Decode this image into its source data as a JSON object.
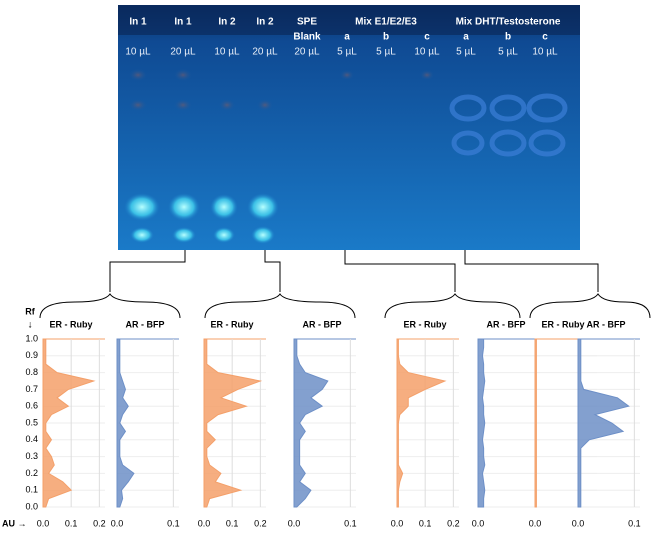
{
  "plate": {
    "lanes": [
      {
        "label": "In 1",
        "volume": "10 µL"
      },
      {
        "label": "In 1",
        "volume": "20 µL"
      },
      {
        "label": "In 2",
        "volume": "10 µL"
      },
      {
        "label": "In 2",
        "volume": "20 µL"
      },
      {
        "label": "SPE",
        "sublabel": "Blank",
        "volume": "20 µL"
      },
      {
        "label": "a",
        "volume": "5 µL"
      },
      {
        "label": "b",
        "volume": "5 µL"
      },
      {
        "label": "c",
        "volume": "10 µL"
      },
      {
        "label": "a",
        "volume": "5 µL"
      },
      {
        "label": "b",
        "volume": "5 µL"
      },
      {
        "label": "c",
        "volume": "10 µL"
      }
    ],
    "groups": [
      {
        "label": "Mix E1/E2/E3"
      },
      {
        "label": "Mix DHT/Testosterone"
      }
    ]
  },
  "rf_axis": {
    "label": "Rf",
    "arrow": "↓",
    "ylim": [
      0,
      1
    ],
    "yticks": [
      {
        "value": 1,
        "label": "1.0"
      },
      0.9,
      0.8,
      0.7,
      0.6,
      0.5,
      0.4,
      0.3,
      0.2,
      0.1,
      {
        "value": 0,
        "label": "0.0"
      }
    ]
  },
  "au_label": "AU →",
  "rf": [
    0,
    0.05,
    0.1,
    0.15,
    0.2,
    0.25,
    0.3,
    0.35,
    0.4,
    0.45,
    0.5,
    0.55,
    0.6,
    0.65,
    0.7,
    0.75,
    0.8,
    0.85,
    0.9,
    0.95,
    1
  ],
  "chart_data": [
    {
      "type": "area",
      "series": [
        {
          "name": "ER - Ruby",
          "color": "#f4a06a",
          "xlim": [
            0,
            0.22
          ],
          "xticks": [
            {
              "value": 0,
              "label": "0.0"
            },
            0.1,
            0.2
          ],
          "values": [
            0.01,
            0.02,
            0.1,
            0.07,
            0.02,
            0.04,
            0.03,
            0.01,
            0.03,
            0.01,
            0.01,
            0.03,
            0.09,
            0.05,
            0.09,
            0.18,
            0.05,
            0.01,
            0.01,
            0.01,
            0.01
          ]
        },
        {
          "name": "AR - BFP",
          "color": "#6d8fc7",
          "xlim": [
            0,
            0.11
          ],
          "xticks": [
            {
              "value": 0,
              "label": "0.0"
            },
            0.1
          ],
          "values": [
            0.005,
            0.01,
            0.008,
            0.02,
            0.03,
            0.01,
            0.005,
            0.005,
            0.005,
            0.015,
            0.005,
            0.01,
            0.02,
            0.01,
            0.015,
            0.01,
            0.005,
            0.005,
            0.005,
            0.005,
            0.005
          ]
        }
      ]
    },
    {
      "type": "area",
      "series": [
        {
          "name": "ER - Ruby",
          "color": "#f4a06a",
          "xlim": [
            0,
            0.22
          ],
          "xticks": [
            {
              "value": 0,
              "label": "0.0"
            },
            0.1,
            0.2
          ],
          "values": [
            0.01,
            0.02,
            0.13,
            0.04,
            0.06,
            0.02,
            0.01,
            0.01,
            0.04,
            0.01,
            0.01,
            0.05,
            0.15,
            0.06,
            0.12,
            0.2,
            0.05,
            0.01,
            0.01,
            0.01,
            0.01
          ]
        },
        {
          "name": "AR - BFP",
          "color": "#6d8fc7",
          "xlim": [
            0,
            0.11
          ],
          "xticks": [
            {
              "value": 0,
              "label": "0.0"
            },
            0.1
          ],
          "values": [
            0.005,
            0.02,
            0.03,
            0.01,
            0.02,
            0.01,
            0.01,
            0.01,
            0.01,
            0.02,
            0.01,
            0.02,
            0.05,
            0.03,
            0.05,
            0.06,
            0.02,
            0.01,
            0.005,
            0.005,
            0.005
          ]
        }
      ]
    },
    {
      "type": "area",
      "series": [
        {
          "name": "ER - Ruby",
          "color": "#f4a06a",
          "xlim": [
            0,
            0.22
          ],
          "xticks": [
            {
              "value": 0,
              "label": "0.0"
            },
            0.1,
            0.2
          ],
          "values": [
            0.005,
            0.005,
            0.005,
            0.01,
            0.02,
            0.005,
            0.005,
            0.005,
            0.005,
            0.005,
            0.005,
            0.01,
            0.04,
            0.04,
            0.1,
            0.17,
            0.04,
            0.01,
            0.005,
            0.005,
            0.005
          ]
        },
        {
          "name": "AR - BFP",
          "color": "#6d8fc7",
          "xlim": [
            0,
            0.11
          ],
          "xticks": [
            {
              "value": 0,
              "label": "0.0"
            }
          ],
          "values": [
            0.01,
            0.01,
            0.012,
            0.01,
            0.008,
            0.012,
            0.01,
            0.01,
            0.008,
            0.01,
            0.012,
            0.01,
            0.01,
            0.008,
            0.01,
            0.012,
            0.01,
            0.01,
            0.008,
            0.01,
            0.01
          ]
        }
      ]
    },
    {
      "type": "area",
      "series": [
        {
          "name": "ER - Ruby",
          "color": "#f4a06a",
          "xlim": [
            0,
            0.22
          ],
          "xticks": [
            {
              "value": 0,
              "label": "0.0"
            }
          ],
          "values": [
            0.005,
            0.005,
            0.005,
            0.005,
            0.005,
            0.005,
            0.005,
            0.005,
            0.005,
            0.005,
            0.005,
            0.005,
            0.005,
            0.005,
            0.005,
            0.005,
            0.005,
            0.005,
            0.005,
            0.005,
            0.005
          ]
        },
        {
          "name": "AR - BFP",
          "color": "#6d8fc7",
          "xlim": [
            0,
            0.11
          ],
          "xticks": [
            {
              "value": 0,
              "label": "0.0"
            },
            0.1
          ],
          "values": [
            0.005,
            0.005,
            0.005,
            0.005,
            0.005,
            0.005,
            0.005,
            0.005,
            0.02,
            0.08,
            0.06,
            0.03,
            0.09,
            0.07,
            0.01,
            0.005,
            0.005,
            0.005,
            0.005,
            0.005,
            0.005
          ]
        }
      ]
    }
  ]
}
